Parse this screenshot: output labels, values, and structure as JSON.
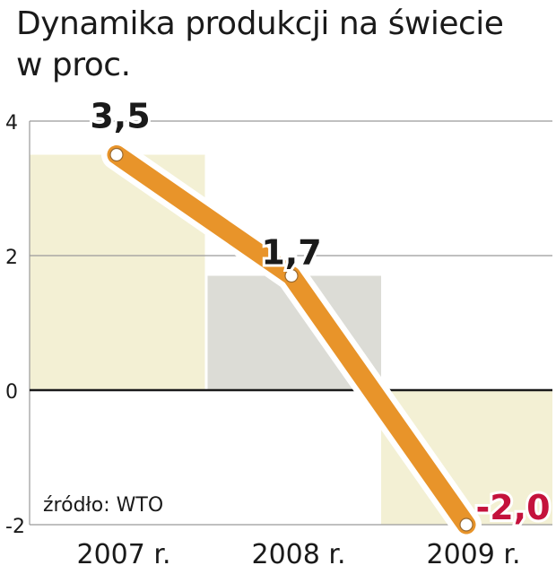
{
  "title_line1": "Dynamika produkcji na świecie",
  "title_line2": "w proc.",
  "source": "źródło: WTO",
  "colors": {
    "line": "#e8942a",
    "band_2007": "#f3f0d4",
    "band_2008": "#dcdcd6",
    "band_2009": "#f3f0d4",
    "negative_label": "#c4123c"
  },
  "chart_data": {
    "type": "line",
    "title": "Dynamika produkcji na świecie",
    "subtitle": "w proc.",
    "categories": [
      "2007 r.",
      "2008 r.",
      "2009 r."
    ],
    "values": [
      3.5,
      1.7,
      -2.0
    ],
    "data_labels": [
      "3,5",
      "1,7",
      "-2,0"
    ],
    "yticks": [
      4,
      2,
      0,
      -2
    ],
    "ytick_labels": [
      "4",
      "2",
      "0",
      "-2"
    ],
    "ylim": [
      -2,
      4
    ],
    "xlabel": "",
    "ylabel": "",
    "grid": true
  }
}
